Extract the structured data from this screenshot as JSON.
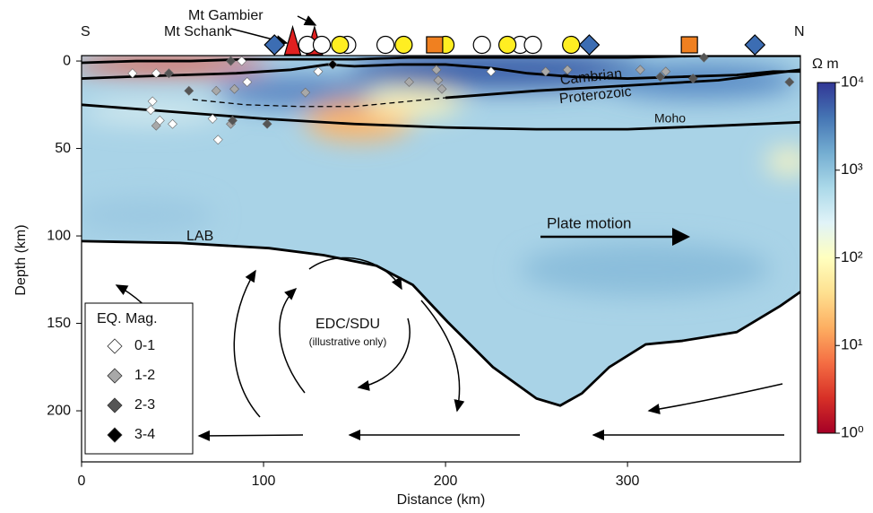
{
  "chart_data": {
    "type": "section",
    "xlabel": "Distance (km)",
    "ylabel": "Depth (km)",
    "xlim": [
      0,
      395
    ],
    "ylim": [
      -3,
      229
    ],
    "y_inverted": true,
    "xticks": [
      0,
      100,
      200,
      300
    ],
    "yticks": [
      0,
      50,
      100,
      150,
      200
    ],
    "left_label": "S",
    "right_label": "N",
    "annotations": {
      "gambier": "Mt Gambier",
      "schank": "Mt Schank",
      "cambrian": "Cambrian",
      "proterozoic": "Proterozoic",
      "moho": "Moho",
      "lab": "LAB",
      "plate": "Plate motion",
      "edc": "EDC/SDU",
      "edc_note": "(illustrative only)"
    },
    "boundaries": [
      {
        "style": "solid",
        "x": [
          0,
          30,
          60,
          90,
          120,
          150,
          180,
          220,
          260,
          300,
          340,
          370,
          395
        ],
        "y": [
          1,
          0,
          0,
          -1,
          -1,
          -1,
          -2,
          -2,
          -2,
          -2,
          -3,
          -3,
          -3
        ]
      },
      {
        "style": "solid",
        "x": [
          0,
          25,
          55,
          85,
          115,
          135,
          150,
          175,
          200,
          225,
          245,
          270,
          300,
          330,
          360,
          380,
          395
        ],
        "y": [
          10,
          9,
          8,
          7,
          5,
          2,
          3,
          2,
          2,
          4,
          7,
          9,
          10,
          9,
          8,
          6,
          6
        ]
      },
      {
        "style": "solid",
        "x": [
          200,
          250,
          300,
          350,
          395
        ],
        "y": [
          21,
          17,
          14,
          11,
          5
        ]
      },
      {
        "style": "dashed",
        "x": [
          61,
          90,
          120,
          150,
          180,
          210
        ],
        "y": [
          22,
          25,
          26,
          26,
          23,
          20
        ]
      },
      {
        "style": "solid",
        "x": [
          0,
          50,
          100,
          150,
          200,
          250,
          300,
          350,
          395
        ],
        "y": [
          25,
          29,
          33,
          36,
          38,
          39,
          39,
          37,
          35
        ]
      },
      {
        "style": "solid",
        "x": [
          0,
          54,
          103,
          133,
          162,
          182,
          201,
          226,
          250,
          263,
          275,
          290,
          310,
          330,
          360,
          384,
          395
        ],
        "y": [
          103,
          104,
          107,
          111,
          117,
          128,
          149,
          175,
          193,
          197,
          190,
          175,
          162,
          160,
          155,
          140,
          132
        ]
      }
    ],
    "colorbar": {
      "label": "Ω m",
      "log": true,
      "lim": [
        1,
        10000
      ],
      "ticks": [
        {
          "value": 1,
          "label": "10⁰"
        },
        {
          "value": 10,
          "label": "10¹"
        },
        {
          "value": 100,
          "label": "10²"
        },
        {
          "value": 1000,
          "label": "10³"
        },
        {
          "value": 10000,
          "label": "10⁴"
        }
      ],
      "colors": [
        "#a50026",
        "#d73027",
        "#f46d43",
        "#fdae61",
        "#fee090",
        "#ffffbf",
        "#e0f3f8",
        "#abd9e9",
        "#74add1",
        "#4575b4",
        "#313695"
      ]
    },
    "surface_markers": [
      {
        "shape": "diamond",
        "color": "#3c6db3",
        "x": [
          106,
          279,
          370
        ]
      },
      {
        "shape": "triangle",
        "color": "#e02020",
        "x": [
          116,
          128
        ]
      },
      {
        "shape": "circle",
        "color": "#ffffff",
        "x": [
          124,
          132,
          146,
          167,
          220,
          241,
          248
        ]
      },
      {
        "shape": "circle",
        "color": "#ffee22",
        "x": [
          142,
          177,
          200,
          234,
          269
        ]
      },
      {
        "shape": "square",
        "color": "#f08020",
        "x": [
          194,
          334
        ]
      }
    ],
    "legend_title": "EQ. Mag.",
    "series": [
      {
        "name": "0-1",
        "color": "#ffffff",
        "x": [
          28,
          41,
          88,
          130,
          225,
          39,
          38,
          50,
          72,
          75,
          43,
          91
        ],
        "y": [
          7,
          7,
          0,
          6,
          6,
          23,
          28,
          36,
          33,
          45,
          34,
          12
        ]
      },
      {
        "name": "1-2",
        "color": "#a8a8a8",
        "x": [
          74,
          84,
          123,
          195,
          196,
          198,
          180,
          255,
          267,
          307,
          321,
          82,
          41
        ],
        "y": [
          17,
          16,
          18,
          5,
          11,
          16,
          12,
          6,
          5,
          5,
          6,
          36,
          37
        ]
      },
      {
        "name": "2-3",
        "color": "#555555",
        "x": [
          82,
          48,
          59,
          102,
          83,
          342,
          318,
          336,
          389
        ],
        "y": [
          0,
          7,
          17,
          36,
          34,
          -2,
          9,
          10,
          12
        ]
      },
      {
        "name": "3-4",
        "color": "#000000",
        "x": [
          138
        ],
        "y": [
          2
        ]
      }
    ]
  }
}
